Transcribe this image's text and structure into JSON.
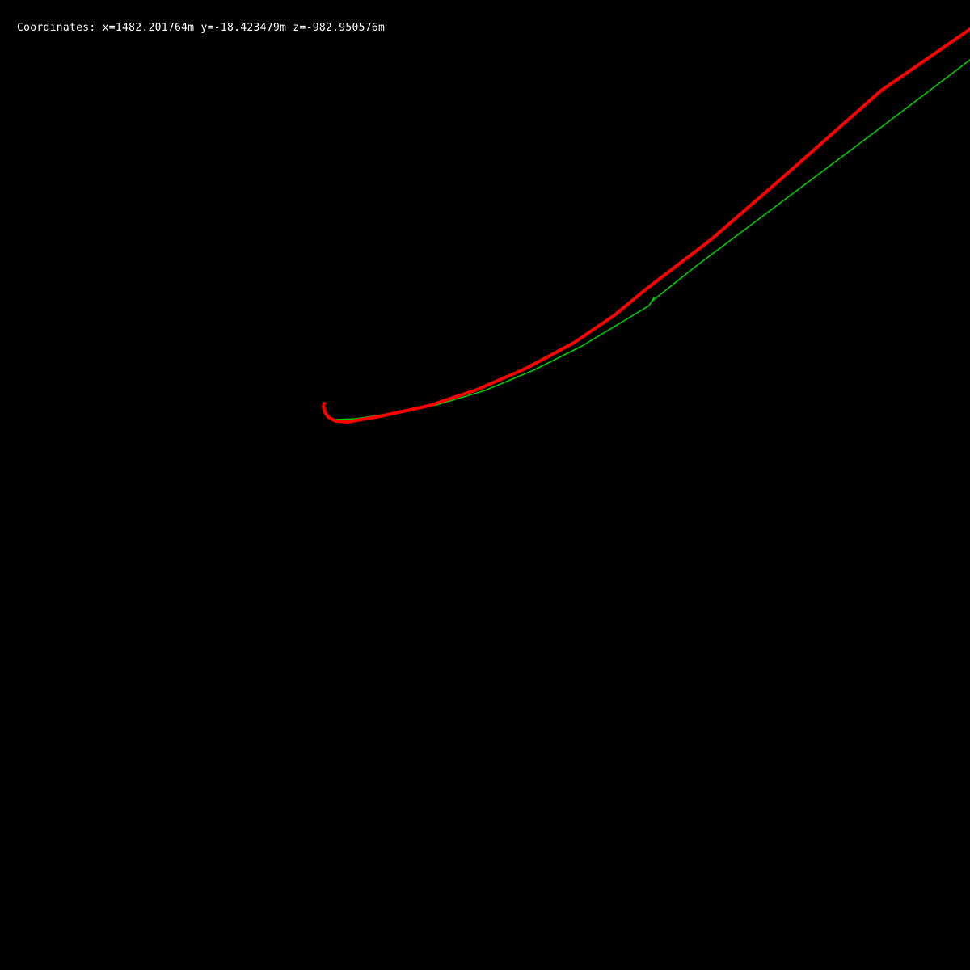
{
  "overlay": {
    "coordinates_text": "Coordinates: x=1482.201764m y=-18.423479m z=-982.950576m"
  },
  "colors": {
    "background": "#000000",
    "text": "#ffffff",
    "estimated_trajectory": "#ff0000",
    "ground_truth_trajectory": "#00cc00"
  }
}
